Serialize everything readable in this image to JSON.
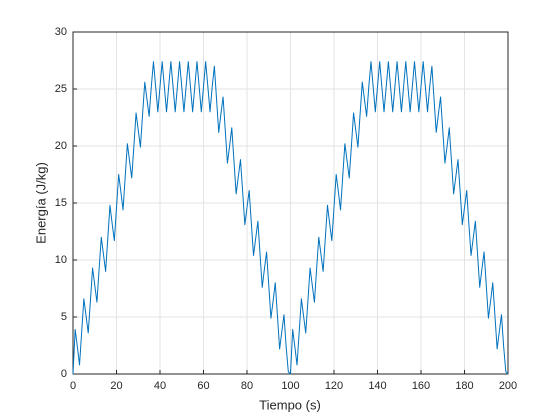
{
  "chart_data": {
    "type": "line",
    "xlabel": "Tiempo (s)",
    "ylabel": "Energía (J/kg)",
    "x": [
      0,
      1,
      2,
      3,
      4,
      5,
      6,
      7,
      8,
      9,
      10,
      11,
      12,
      13,
      14,
      15,
      16,
      17,
      18,
      19,
      20,
      21,
      22,
      23,
      24,
      25,
      26,
      27,
      28,
      29,
      30,
      31,
      32,
      33,
      34,
      35,
      36,
      37,
      38,
      39,
      40,
      41,
      42,
      43,
      44,
      45,
      46,
      47,
      48,
      49,
      50,
      51,
      52,
      53,
      54,
      55,
      56,
      57,
      58,
      59,
      60,
      61,
      62,
      63,
      64,
      65,
      66,
      67,
      68,
      69,
      70,
      71,
      72,
      73,
      74,
      75,
      76,
      77,
      78,
      79,
      80,
      81,
      82,
      83,
      84,
      85,
      86,
      87,
      88,
      89,
      90,
      91,
      92,
      93,
      94,
      95,
      96,
      97,
      98,
      99,
      100,
      101,
      102,
      103,
      104,
      105,
      106,
      107,
      108,
      109,
      110,
      111,
      112,
      113,
      114,
      115,
      116,
      117,
      118,
      119,
      120,
      121,
      122,
      123,
      124,
      125,
      126,
      127,
      128,
      129,
      130,
      131,
      132,
      133,
      134,
      135,
      136,
      137,
      138,
      139,
      140,
      141,
      142,
      143,
      144,
      145,
      146,
      147,
      148,
      149,
      150,
      151,
      152,
      153,
      154,
      155,
      156,
      157,
      158,
      159,
      160,
      161,
      162,
      163,
      164,
      165,
      166,
      167,
      168,
      169,
      170,
      171,
      172,
      173,
      174,
      175,
      176,
      177,
      178,
      179,
      180,
      181,
      182,
      183,
      184,
      185,
      186,
      187,
      188,
      189,
      190,
      191,
      192,
      193,
      194,
      195,
      196,
      197,
      198,
      199,
      200
    ],
    "series": [
      {
        "color": "#0072bd",
        "values": [
          0,
          3.9,
          2.4,
          0.8,
          3.7,
          6.6,
          5.1,
          3.6,
          6.4,
          9.3,
          7.8,
          6.3,
          9.2,
          12.0,
          10.5,
          9.0,
          11.9,
          14.8,
          13.2,
          11.7,
          14.6,
          17.5,
          16.0,
          14.4,
          17.3,
          20.2,
          18.7,
          17.2,
          20.0,
          22.9,
          21.4,
          19.9,
          22.8,
          25.6,
          24.1,
          22.6,
          25.2,
          27.4,
          25.2,
          23.0,
          25.2,
          27.4,
          25.2,
          23.0,
          25.2,
          27.4,
          25.2,
          23.0,
          25.2,
          27.4,
          25.2,
          23.0,
          25.2,
          27.4,
          25.2,
          23.0,
          25.2,
          27.4,
          25.2,
          23.0,
          25.2,
          27.4,
          25.2,
          23.0,
          25.2,
          27.0,
          24.1,
          21.2,
          22.8,
          24.3,
          21.4,
          18.5,
          20.0,
          21.6,
          18.7,
          15.8,
          17.3,
          18.8,
          16.0,
          13.1,
          14.6,
          16.1,
          13.2,
          10.4,
          11.9,
          13.4,
          10.5,
          7.6,
          9.2,
          10.7,
          7.8,
          4.9,
          6.4,
          8.0,
          5.1,
          2.2,
          3.7,
          5.2,
          2.4,
          0.2,
          0,
          3.9,
          2.4,
          0.8,
          3.7,
          6.6,
          5.1,
          3.6,
          6.4,
          9.3,
          7.8,
          6.3,
          9.2,
          12.0,
          10.5,
          9.0,
          11.9,
          14.8,
          13.2,
          11.7,
          14.6,
          17.5,
          16.0,
          14.4,
          17.3,
          20.2,
          18.7,
          17.2,
          20.0,
          22.9,
          21.4,
          19.9,
          22.8,
          25.6,
          24.1,
          22.6,
          25.2,
          27.4,
          25.2,
          23.0,
          25.2,
          27.4,
          25.2,
          23.0,
          25.2,
          27.4,
          25.2,
          23.0,
          25.2,
          27.4,
          25.2,
          23.0,
          25.2,
          27.4,
          25.2,
          23.0,
          25.2,
          27.4,
          25.2,
          23.0,
          25.2,
          27.4,
          25.2,
          23.0,
          25.2,
          27.0,
          24.1,
          21.2,
          22.8,
          24.3,
          21.4,
          18.5,
          20.0,
          21.6,
          18.7,
          15.8,
          17.3,
          18.8,
          16.0,
          13.1,
          14.6,
          16.1,
          13.2,
          10.4,
          11.9,
          13.4,
          10.5,
          7.6,
          9.2,
          10.7,
          7.8,
          4.9,
          6.4,
          8.0,
          5.1,
          2.2,
          3.7,
          5.2,
          2.4,
          0.2,
          0
        ]
      }
    ],
    "xlim": [
      0,
      200
    ],
    "xticks": [
      0,
      20,
      40,
      60,
      80,
      100,
      120,
      140,
      160,
      180,
      200
    ],
    "ylim": [
      0,
      30
    ],
    "yticks": [
      0,
      5,
      10,
      15,
      20,
      25,
      30
    ],
    "grid": true
  }
}
